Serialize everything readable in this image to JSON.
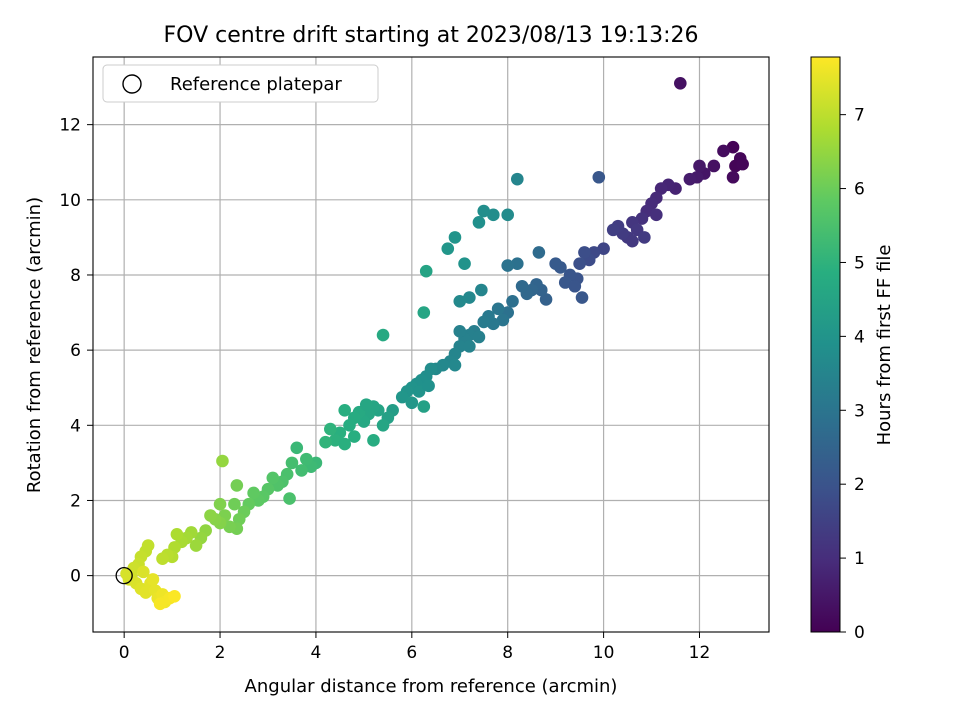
{
  "chart_data": {
    "type": "scatter",
    "title": "FOV centre drift starting at 2023/08/13 19:13:26",
    "xlabel": "Angular distance from reference (arcmin)",
    "ylabel": "Rotation from reference (arcmin)",
    "xlim": [
      -0.65,
      13.45
    ],
    "ylim": [
      -1.5,
      13.8
    ],
    "xticks": [
      0,
      2,
      4,
      6,
      8,
      10,
      12
    ],
    "yticks": [
      0,
      2,
      4,
      6,
      8,
      10,
      12
    ],
    "grid": true,
    "legend": {
      "position": "top-left",
      "entries": [
        {
          "label": "Reference platepar",
          "marker": "open-circle"
        }
      ]
    },
    "reference_point": {
      "x": 0,
      "y": 0
    },
    "colorbar": {
      "label": "Hours from first FF file",
      "colormap": "viridis",
      "min": 0,
      "max": 7.78,
      "ticks": [
        0,
        1,
        2,
        3,
        4,
        5,
        6,
        7
      ]
    },
    "points_columns": [
      "x",
      "y",
      "hours"
    ],
    "points": [
      [
        11.6,
        13.1,
        0.35
      ],
      [
        12.7,
        11.4,
        0.05
      ],
      [
        12.85,
        11.1,
        0.1
      ],
      [
        12.75,
        10.9,
        0.08
      ],
      [
        12.9,
        10.95,
        0.12
      ],
      [
        12.7,
        10.6,
        0.2
      ],
      [
        12.5,
        11.3,
        0.25
      ],
      [
        12.3,
        10.9,
        0.35
      ],
      [
        12.1,
        10.7,
        0.45
      ],
      [
        11.95,
        10.6,
        0.55
      ],
      [
        11.8,
        10.55,
        0.6
      ],
      [
        12.0,
        10.9,
        0.5
      ],
      [
        11.5,
        10.3,
        0.75
      ],
      [
        11.35,
        10.4,
        0.8
      ],
      [
        11.2,
        10.3,
        0.85
      ],
      [
        11.1,
        10.05,
        0.9
      ],
      [
        11.0,
        9.9,
        0.95
      ],
      [
        10.9,
        9.7,
        1.0
      ],
      [
        11.1,
        9.6,
        1.05
      ],
      [
        10.8,
        9.5,
        1.1
      ],
      [
        10.6,
        9.4,
        1.2
      ],
      [
        10.7,
        9.2,
        1.25
      ],
      [
        10.5,
        9.0,
        1.3
      ],
      [
        10.4,
        9.1,
        1.35
      ],
      [
        10.3,
        9.3,
        1.4
      ],
      [
        10.2,
        9.2,
        1.45
      ],
      [
        10.0,
        8.7,
        1.6
      ],
      [
        10.6,
        8.9,
        1.3
      ],
      [
        10.85,
        9.0,
        1.35
      ],
      [
        9.9,
        10.6,
        2.1
      ],
      [
        9.8,
        8.6,
        1.7
      ],
      [
        9.7,
        8.4,
        1.8
      ],
      [
        9.6,
        8.6,
        1.85
      ],
      [
        9.5,
        8.3,
        1.9
      ],
      [
        9.45,
        7.9,
        2.0
      ],
      [
        9.3,
        8.0,
        2.05
      ],
      [
        9.2,
        7.8,
        2.1
      ],
      [
        9.1,
        8.2,
        2.15
      ],
      [
        9.0,
        8.3,
        2.2
      ],
      [
        9.4,
        7.7,
        2.05
      ],
      [
        9.55,
        7.4,
        2.1
      ],
      [
        8.8,
        7.35,
        2.4
      ],
      [
        8.7,
        7.6,
        2.45
      ],
      [
        8.6,
        7.75,
        2.5
      ],
      [
        8.5,
        7.6,
        2.55
      ],
      [
        8.4,
        7.5,
        2.6
      ],
      [
        8.3,
        7.7,
        2.65
      ],
      [
        8.2,
        8.3,
        2.9
      ],
      [
        8.0,
        8.25,
        2.95
      ],
      [
        8.65,
        8.6,
        2.7
      ],
      [
        8.1,
        7.3,
        2.85
      ],
      [
        8.0,
        7.0,
        2.9
      ],
      [
        7.9,
        6.8,
        3.0
      ],
      [
        7.8,
        7.1,
        3.05
      ],
      [
        7.7,
        6.7,
        3.1
      ],
      [
        7.6,
        6.9,
        3.15
      ],
      [
        7.5,
        6.75,
        3.2
      ],
      [
        7.3,
        6.5,
        3.3
      ],
      [
        7.2,
        6.4,
        3.35
      ],
      [
        7.1,
        6.3,
        3.4
      ],
      [
        7.0,
        6.1,
        3.45
      ],
      [
        6.9,
        5.9,
        3.5
      ],
      [
        6.8,
        5.7,
        3.55
      ],
      [
        6.65,
        5.6,
        3.6
      ],
      [
        6.5,
        5.5,
        3.65
      ],
      [
        6.9,
        5.6,
        3.6
      ],
      [
        7.2,
        6.1,
        3.45
      ],
      [
        7.0,
        6.5,
        3.4
      ],
      [
        7.4,
        6.35,
        3.35
      ],
      [
        8.2,
        10.55,
        3.5
      ],
      [
        8.0,
        9.6,
        3.7
      ],
      [
        7.7,
        9.6,
        3.75
      ],
      [
        7.5,
        9.7,
        3.8
      ],
      [
        7.4,
        9.4,
        3.85
      ],
      [
        6.9,
        9.0,
        4.0
      ],
      [
        6.75,
        8.7,
        4.05
      ],
      [
        7.1,
        8.3,
        3.95
      ],
      [
        6.3,
        8.1,
        4.5
      ],
      [
        7.45,
        7.6,
        3.5
      ],
      [
        7.2,
        7.4,
        3.6
      ],
      [
        7.0,
        7.3,
        3.65
      ],
      [
        6.25,
        7.0,
        4.55
      ],
      [
        5.4,
        6.4,
        4.7
      ],
      [
        6.4,
        5.5,
        3.75
      ],
      [
        6.3,
        5.3,
        3.8
      ],
      [
        6.2,
        5.2,
        3.85
      ],
      [
        6.1,
        5.1,
        3.9
      ],
      [
        6.0,
        5.0,
        3.95
      ],
      [
        5.9,
        4.9,
        4.0
      ],
      [
        5.8,
        4.75,
        4.05
      ],
      [
        6.15,
        4.9,
        3.95
      ],
      [
        6.35,
        5.05,
        3.9
      ],
      [
        6.25,
        4.5,
        4.4
      ],
      [
        6.0,
        4.6,
        4.1
      ],
      [
        5.6,
        4.4,
        4.3
      ],
      [
        5.5,
        4.2,
        4.4
      ],
      [
        5.3,
        4.4,
        4.5
      ],
      [
        5.2,
        4.5,
        4.55
      ],
      [
        5.1,
        4.3,
        4.6
      ],
      [
        5.0,
        4.1,
        4.65
      ],
      [
        4.9,
        4.35,
        4.7
      ],
      [
        4.8,
        4.2,
        4.75
      ],
      [
        4.7,
        4.0,
        4.8
      ],
      [
        4.6,
        4.4,
        4.85
      ],
      [
        4.5,
        3.8,
        4.9
      ],
      [
        4.4,
        3.6,
        4.95
      ],
      [
        4.3,
        3.9,
        5.0
      ],
      [
        4.2,
        3.55,
        5.05
      ],
      [
        5.4,
        4.0,
        4.55
      ],
      [
        5.2,
        3.6,
        4.8
      ],
      [
        4.6,
        3.5,
        4.9
      ],
      [
        4.8,
        3.7,
        4.85
      ],
      [
        5.05,
        4.55,
        4.6
      ],
      [
        4.0,
        3.0,
        5.2
      ],
      [
        3.9,
        2.9,
        5.25
      ],
      [
        3.8,
        3.1,
        5.3
      ],
      [
        3.7,
        2.8,
        5.35
      ],
      [
        3.6,
        3.4,
        5.2
      ],
      [
        3.5,
        3.0,
        5.4
      ],
      [
        3.4,
        2.7,
        5.5
      ],
      [
        3.3,
        2.5,
        5.55
      ],
      [
        3.2,
        2.4,
        5.6
      ],
      [
        3.1,
        2.6,
        5.65
      ],
      [
        3.0,
        2.3,
        5.7
      ],
      [
        2.9,
        2.1,
        5.75
      ],
      [
        2.8,
        2.0,
        5.8
      ],
      [
        2.7,
        2.2,
        5.85
      ],
      [
        3.45,
        2.05,
        5.5
      ],
      [
        2.6,
        1.9,
        5.9
      ],
      [
        2.5,
        1.7,
        6.0
      ],
      [
        2.4,
        1.5,
        6.05
      ],
      [
        2.3,
        1.9,
        6.05
      ],
      [
        2.35,
        2.4,
        6.1
      ],
      [
        2.35,
        1.25,
        6.1
      ],
      [
        2.2,
        1.3,
        6.15
      ],
      [
        2.1,
        1.6,
        6.2
      ],
      [
        2.0,
        1.9,
        6.25
      ],
      [
        2.0,
        1.4,
        6.3
      ],
      [
        2.05,
        3.05,
        6.5
      ],
      [
        1.9,
        1.5,
        6.35
      ],
      [
        1.8,
        1.6,
        6.4
      ],
      [
        1.7,
        1.2,
        6.45
      ],
      [
        1.6,
        1.0,
        6.5
      ],
      [
        1.5,
        0.8,
        6.6
      ],
      [
        1.4,
        1.15,
        6.65
      ],
      [
        1.3,
        1.0,
        6.7
      ],
      [
        1.2,
        0.9,
        6.75
      ],
      [
        1.1,
        1.1,
        6.8
      ],
      [
        1.05,
        0.75,
        6.85
      ],
      [
        1.0,
        0.5,
        6.9
      ],
      [
        0.9,
        0.55,
        6.95
      ],
      [
        0.8,
        0.45,
        7.0
      ],
      [
        0.5,
        0.8,
        7.05
      ],
      [
        0.45,
        0.65,
        7.05
      ],
      [
        0.35,
        0.5,
        7.1
      ],
      [
        0.3,
        0.3,
        7.15
      ],
      [
        0.2,
        0.2,
        7.2
      ],
      [
        0.15,
        0.0,
        7.25
      ],
      [
        0.1,
        -0.1,
        7.3
      ],
      [
        0.25,
        -0.2,
        7.35
      ],
      [
        0.35,
        -0.35,
        7.4
      ],
      [
        0.45,
        -0.45,
        7.45
      ],
      [
        0.55,
        -0.2,
        7.45
      ],
      [
        0.65,
        -0.4,
        7.5
      ],
      [
        0.7,
        -0.6,
        7.55
      ],
      [
        0.8,
        -0.5,
        7.6
      ],
      [
        0.85,
        -0.7,
        7.65
      ],
      [
        0.95,
        -0.6,
        7.7
      ],
      [
        1.05,
        -0.55,
        7.75
      ],
      [
        0.75,
        -0.75,
        7.7
      ],
      [
        0.6,
        -0.1,
        7.5
      ],
      [
        0.4,
        0.1,
        7.35
      ],
      [
        0.05,
        0.05,
        7.3
      ]
    ]
  }
}
